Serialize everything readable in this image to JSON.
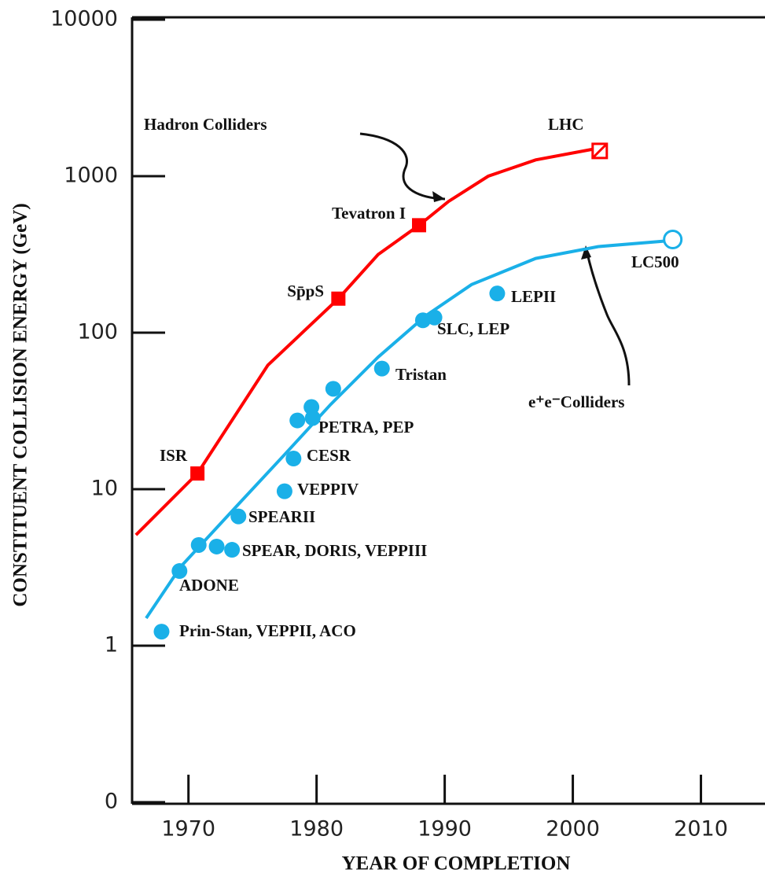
{
  "chart_data": {
    "type": "scatter",
    "yscale": "log",
    "ylabel": "CONSTITUENT COLLISION ENERGY (GeV)",
    "xlabel": "YEAR OF COMPLETION",
    "xlim": [
      1965.6,
      2015
    ],
    "xticks": [
      1970,
      1980,
      1990,
      2000,
      2010
    ],
    "ylim": [
      0.1,
      10000
    ],
    "yticks": [
      {
        "value": 0.1,
        "label": "0"
      },
      1,
      10,
      100,
      1000,
      10000
    ],
    "series": [
      {
        "name": "Hadron Colliders",
        "color": "#ff0000",
        "marker": "square",
        "x": [
          1970.7,
          1981.7,
          1988.0,
          2002.1
        ],
        "values": [
          12.6,
          165,
          486,
          1450
        ],
        "open": [
          false,
          false,
          false,
          true
        ],
        "labels": [
          "ISR",
          "Sp̄pS",
          "Tevatron I",
          "LHC"
        ],
        "curve": {
          "x": [
            1965.9,
            1970.7,
            1976.2,
            1981.7,
            1984.8,
            1988.0,
            1990.3,
            1993.4,
            1997.1,
            2002.0
          ],
          "values": [
            5.1,
            12.6,
            62,
            165,
            316,
            486,
            690,
            1000,
            1270,
            1510
          ]
        }
      },
      {
        "name": "e⁺e⁻Colliders",
        "color": "#1ab0e8",
        "marker": "circle",
        "x": [
          1967.9,
          1969.3,
          1970.8,
          1972.2,
          1973.4,
          1973.9,
          1977.5,
          1978.2,
          1978.5,
          1979.6,
          1979.7,
          1981.3,
          1985.1,
          1988.3,
          1989.2,
          1994.1,
          2007.8
        ],
        "values": [
          1.23,
          3.0,
          4.4,
          4.3,
          4.1,
          6.7,
          9.7,
          15.7,
          27.5,
          33.5,
          28.5,
          43.8,
          59,
          120,
          125,
          178,
          394
        ],
        "open": [
          false,
          false,
          false,
          false,
          false,
          false,
          false,
          false,
          false,
          false,
          false,
          false,
          false,
          false,
          false,
          false,
          true
        ],
        "labels": [
          "Prin-Stan, VEPPII, ACO",
          "ADONE",
          null,
          null,
          "SPEAR, DORIS, VEPPIII",
          "SPEARII",
          "VEPPIV",
          "CESR",
          null,
          null,
          "PETRA, PEP",
          null,
          "Tristan",
          "SLC, LEP",
          null,
          "LEPII",
          "LC500"
        ],
        "curve": {
          "x": [
            1966.7,
            1969.4,
            1973.7,
            1977.4,
            1981.1,
            1984.8,
            1988.5,
            1992.1,
            1997.1,
            2002.0,
            2007.2
          ],
          "values": [
            1.5,
            3.2,
            7.7,
            16.3,
            34.8,
            69.8,
            128,
            203,
            298,
            355,
            385
          ]
        }
      }
    ]
  }
}
